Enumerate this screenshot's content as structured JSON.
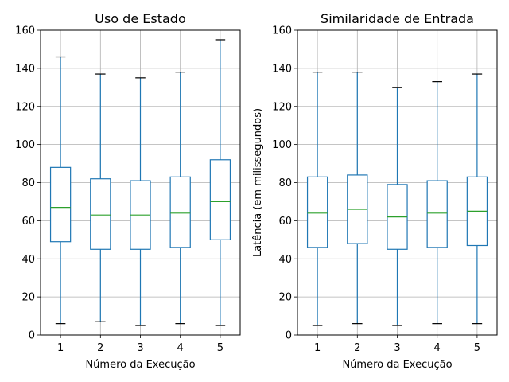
{
  "chart_data": [
    {
      "type": "boxplot",
      "title": "Uso de Estado",
      "xlabel": "Número da Execução",
      "ylabel": "",
      "categories": [
        "1",
        "2",
        "3",
        "4",
        "5"
      ],
      "ylim": [
        0,
        160
      ],
      "yticks": [
        0,
        20,
        40,
        60,
        80,
        100,
        120,
        140,
        160
      ],
      "grid": true,
      "boxes": [
        {
          "whislo": 6,
          "q1": 49,
          "med": 67,
          "q3": 88,
          "whishi": 146
        },
        {
          "whislo": 7,
          "q1": 45,
          "med": 63,
          "q3": 82,
          "whishi": 137
        },
        {
          "whislo": 5,
          "q1": 45,
          "med": 63,
          "q3": 81,
          "whishi": 135
        },
        {
          "whislo": 6,
          "q1": 46,
          "med": 64,
          "q3": 83,
          "whishi": 138
        },
        {
          "whislo": 5,
          "q1": 50,
          "med": 70,
          "q3": 92,
          "whishi": 155
        }
      ]
    },
    {
      "type": "boxplot",
      "title": "Similaridade de Entrada",
      "xlabel": "Número da Execução",
      "ylabel": "Latência (em milissegundos)",
      "categories": [
        "1",
        "2",
        "3",
        "4",
        "5"
      ],
      "ylim": [
        0,
        160
      ],
      "yticks": [
        0,
        20,
        40,
        60,
        80,
        100,
        120,
        140,
        160
      ],
      "grid": true,
      "boxes": [
        {
          "whislo": 5,
          "q1": 46,
          "med": 64,
          "q3": 83,
          "whishi": 138
        },
        {
          "whislo": 6,
          "q1": 48,
          "med": 66,
          "q3": 84,
          "whishi": 138
        },
        {
          "whislo": 5,
          "q1": 45,
          "med": 62,
          "q3": 79,
          "whishi": 130
        },
        {
          "whislo": 6,
          "q1": 46,
          "med": 64,
          "q3": 81,
          "whishi": 133
        },
        {
          "whislo": 6,
          "q1": 47,
          "med": 65,
          "q3": 83,
          "whishi": 137
        }
      ]
    }
  ],
  "colors": {
    "box": "#1f77b4",
    "median": "#2ca02c",
    "cap": "#000000",
    "grid": "#b0b0b0",
    "axes": "#000000",
    "background": "#ffffff"
  }
}
